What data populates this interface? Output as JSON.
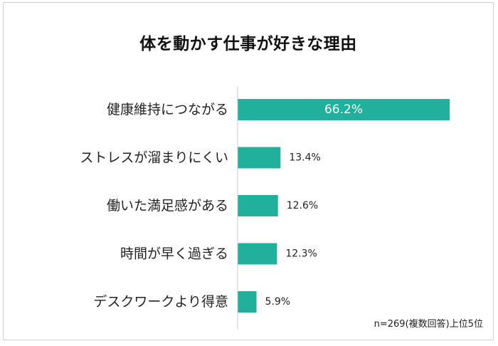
{
  "chart_data": {
    "type": "bar",
    "orientation": "horizontal",
    "title": "体を動かす仕事が好きな理由",
    "categories": [
      "健康維持につながる",
      "ストレスが溜まりにくい",
      "働いた満足感がある",
      "時間が早く過ぎる",
      "デスクワークより得意"
    ],
    "values": [
      66.2,
      13.4,
      12.6,
      12.3,
      5.9
    ],
    "value_labels": [
      "66.2%",
      "13.4%",
      "12.6%",
      "12.3%",
      "5.9%"
    ],
    "xlim": [
      0,
      66.2
    ],
    "grid": false,
    "bar_color": "#20b09b",
    "note": "n=269(複数回答)上位5位"
  }
}
